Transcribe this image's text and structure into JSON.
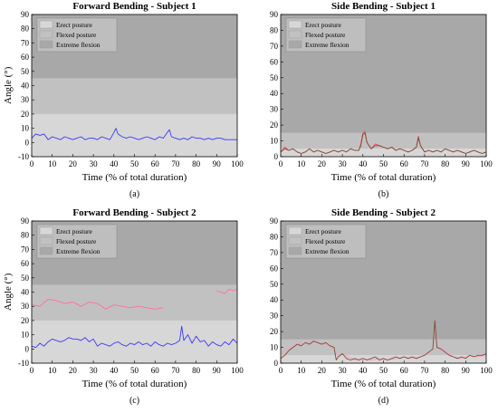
{
  "figure": {
    "captions": [
      "(a)",
      "(b)",
      "(c)",
      "(d)"
    ],
    "zone_colors": {
      "erect": "#d7d7d7",
      "flexed": "#c1c1c1",
      "extreme": "#a8a8a8"
    },
    "series_colors": {
      "blue": "#3a3aff",
      "brown": "#7a5030",
      "red": "#ff3c5a",
      "pink": "#ff9bc8"
    }
  },
  "chart_data": [
    {
      "type": "line",
      "title": "Forward Bending - Subject 1",
      "xlabel": "Time (% of total duration)",
      "ylabel": "Angle (°)",
      "xlim": [
        0,
        100
      ],
      "ylim": [
        -10,
        90
      ],
      "xticks": [
        "0",
        "10",
        "20",
        "30",
        "40",
        "50",
        "60",
        "70",
        "80",
        "90",
        "100"
      ],
      "yticks": [
        "-10",
        "0",
        "10",
        "20",
        "30",
        "40",
        "50",
        "60",
        "70",
        "80",
        "90"
      ],
      "legend": {
        "placement": "top-left",
        "entries": [
          "Erect posture",
          "Flexed posture",
          "Extreme flexion"
        ]
      },
      "zones": [
        {
          "name": "Erect posture",
          "from": -10,
          "to": 20
        },
        {
          "name": "Flexed posture",
          "from": 20,
          "to": 45
        },
        {
          "name": "Extreme flexion",
          "from": 45,
          "to": 90
        }
      ],
      "series": [
        {
          "color": "#3a3aff",
          "x": [
            0,
            2,
            4,
            6,
            8,
            10,
            12,
            14,
            16,
            18,
            20,
            22,
            24,
            26,
            28,
            30,
            32,
            34,
            36,
            38,
            40,
            41,
            42,
            44,
            46,
            48,
            50,
            52,
            54,
            56,
            58,
            60,
            62,
            64,
            66,
            67,
            68,
            70,
            72,
            74,
            76,
            78,
            80,
            82,
            84,
            86,
            88,
            90,
            92,
            94,
            96,
            98,
            100
          ],
          "y": [
            3,
            6,
            5,
            6,
            2,
            4,
            3,
            2,
            4,
            3,
            2,
            3,
            4,
            2,
            3,
            3,
            2,
            4,
            3,
            2,
            7,
            10,
            6,
            4,
            3,
            4,
            3,
            2,
            3,
            4,
            3,
            2,
            4,
            3,
            7,
            9,
            4,
            3,
            2,
            3,
            2,
            4,
            3,
            3,
            2,
            3,
            2,
            3,
            3,
            2,
            2,
            2,
            2
          ]
        }
      ]
    },
    {
      "type": "line",
      "title": "Side Bending - Subject 1",
      "xlabel": "Time (% of total duration)",
      "ylabel": "",
      "xlim": [
        0,
        100
      ],
      "ylim": [
        0,
        90
      ],
      "xticks": [
        "0",
        "10",
        "20",
        "30",
        "40",
        "50",
        "60",
        "70",
        "80",
        "90",
        "100"
      ],
      "yticks": [
        "0",
        "10",
        "20",
        "30",
        "40",
        "50",
        "60",
        "70",
        "80",
        "90"
      ],
      "legend": {
        "placement": "top-left",
        "entries": [
          "Erect posture",
          "Flexed posture",
          "Extreme flexion"
        ]
      },
      "zones": [
        {
          "name": "Erect posture",
          "from": 0,
          "to": 5
        },
        {
          "name": "Flexed posture",
          "from": 5,
          "to": 15
        },
        {
          "name": "Extreme flexion",
          "from": 15,
          "to": 90
        }
      ],
      "series": [
        {
          "color": "#ff3c5a",
          "x": [
            0,
            2,
            4,
            6,
            8,
            10,
            12,
            14,
            16,
            18,
            20,
            22,
            24,
            26,
            28,
            30,
            32,
            34,
            36,
            38,
            39,
            40,
            41,
            42,
            44,
            46,
            48,
            50,
            52,
            54,
            56,
            58,
            60,
            62,
            64,
            66,
            67,
            68,
            70,
            72,
            74,
            76,
            78,
            80,
            82,
            84,
            86,
            88,
            90,
            92,
            94,
            96,
            98,
            100
          ],
          "y": [
            3,
            6,
            4,
            5,
            3,
            2,
            3,
            5,
            3,
            4,
            3,
            2,
            3,
            4,
            3,
            4,
            3,
            5,
            4,
            4,
            8,
            15,
            16,
            9,
            5,
            8,
            7,
            6,
            5,
            6,
            4,
            5,
            4,
            3,
            4,
            6,
            13,
            7,
            3,
            4,
            3,
            4,
            3,
            5,
            4,
            3,
            4,
            3,
            2,
            3,
            4,
            3,
            2,
            3
          ]
        },
        {
          "color": "#7a5030",
          "x": [
            0,
            2,
            4,
            6,
            8,
            10,
            12,
            14,
            16,
            18,
            20,
            22,
            24,
            26,
            28,
            30,
            32,
            34,
            36,
            38,
            39,
            40,
            41,
            42,
            44,
            46,
            48,
            50,
            52,
            54,
            56,
            58,
            60,
            62,
            64,
            66,
            67,
            68,
            70,
            72,
            74,
            76,
            78,
            80,
            82,
            84,
            86,
            88,
            90,
            92,
            94,
            96,
            98,
            100
          ],
          "y": [
            3,
            5,
            4,
            5,
            3,
            2,
            3,
            5,
            3,
            4,
            3,
            2,
            3,
            4,
            3,
            4,
            3,
            5,
            4,
            4,
            7,
            14,
            15,
            9,
            5,
            7,
            7,
            6,
            5,
            6,
            4,
            5,
            4,
            3,
            4,
            6,
            12,
            7,
            3,
            4,
            3,
            4,
            3,
            5,
            4,
            3,
            4,
            3,
            2,
            3,
            4,
            3,
            2,
            3
          ]
        }
      ]
    },
    {
      "type": "line",
      "title": "Forward Bending - Subject 2",
      "xlabel": "Time (% of total duration)",
      "ylabel": "Angle (°)",
      "xlim": [
        0,
        100
      ],
      "ylim": [
        -10,
        90
      ],
      "xticks": [
        "0",
        "10",
        "20",
        "30",
        "40",
        "50",
        "60",
        "70",
        "80",
        "90",
        "100"
      ],
      "yticks": [
        "-10",
        "0",
        "10",
        "20",
        "30",
        "40",
        "50",
        "60",
        "70",
        "80",
        "90"
      ],
      "legend": {
        "placement": "top-left",
        "entries": [
          "Erect posture",
          "Flexed posture",
          "Extreme flexion"
        ]
      },
      "zones": [
        {
          "name": "Erect posture",
          "from": -10,
          "to": 20
        },
        {
          "name": "Flexed posture",
          "from": 20,
          "to": 45
        },
        {
          "name": "Extreme flexion",
          "from": 45,
          "to": 90
        }
      ],
      "series": [
        {
          "color": "#ff6fa0",
          "x": [
            0,
            4,
            8,
            12,
            16,
            20,
            24,
            28,
            32,
            36,
            40,
            44,
            48,
            52,
            56,
            60,
            64
          ],
          "y": [
            31,
            30,
            35,
            34,
            32,
            33,
            30,
            33,
            32,
            28,
            31,
            30,
            29,
            30,
            29,
            28,
            29
          ]
        },
        {
          "color": "#ff6fa0",
          "x": [
            90,
            92,
            94,
            96,
            98,
            100
          ],
          "y": [
            41,
            40,
            39,
            42,
            41,
            42
          ]
        },
        {
          "color": "#3a3aff",
          "x": [
            0,
            2,
            4,
            6,
            8,
            10,
            12,
            14,
            16,
            18,
            20,
            22,
            24,
            26,
            28,
            30,
            32,
            34,
            36,
            38,
            40,
            42,
            44,
            46,
            48,
            50,
            52,
            54,
            56,
            58,
            60,
            62,
            64,
            66,
            68,
            70,
            72,
            73,
            74,
            76,
            78,
            80,
            82,
            84,
            86,
            88,
            90,
            92,
            94,
            96,
            98,
            100
          ],
          "y": [
            2,
            1,
            4,
            2,
            5,
            7,
            6,
            5,
            6,
            8,
            7,
            7,
            6,
            8,
            5,
            7,
            2,
            4,
            3,
            2,
            4,
            5,
            3,
            2,
            4,
            3,
            5,
            3,
            4,
            2,
            5,
            3,
            2,
            4,
            3,
            4,
            6,
            16,
            6,
            10,
            4,
            9,
            5,
            6,
            2,
            5,
            3,
            2,
            5,
            3,
            7,
            4
          ]
        }
      ]
    },
    {
      "type": "line",
      "title": "Side Bending - Subject 2",
      "xlabel": "Time (% of total duration)",
      "ylabel": "",
      "xlim": [
        0,
        100
      ],
      "ylim": [
        0,
        90
      ],
      "xticks": [
        "0",
        "10",
        "20",
        "30",
        "40",
        "50",
        "60",
        "70",
        "80",
        "90",
        "100"
      ],
      "yticks": [
        "0",
        "10",
        "20",
        "30",
        "40",
        "50",
        "60",
        "70",
        "80",
        "90"
      ],
      "legend": {
        "placement": "top-left",
        "entries": [
          "Erect posture",
          "Flexed posture",
          "Extreme flexion"
        ]
      },
      "zones": [
        {
          "name": "Erect posture",
          "from": 0,
          "to": 5
        },
        {
          "name": "Flexed posture",
          "from": 5,
          "to": 15
        },
        {
          "name": "Extreme flexion",
          "from": 15,
          "to": 90
        }
      ],
      "series": [
        {
          "color": "#ff9bc8",
          "x": [
            0,
            3,
            6,
            9,
            12,
            15,
            18,
            21,
            24,
            26,
            28,
            30,
            33,
            36,
            40,
            44,
            48,
            52,
            56,
            60,
            64,
            68,
            72,
            74,
            75,
            76,
            78,
            80,
            84,
            88,
            92,
            96,
            100
          ],
          "y": [
            3,
            8,
            11,
            13,
            12,
            14,
            13,
            12,
            11,
            9,
            4,
            6,
            4,
            2,
            3,
            2,
            3,
            2,
            3,
            4,
            3,
            4,
            6,
            9,
            26,
            12,
            10,
            8,
            4,
            3,
            5,
            4,
            5
          ]
        },
        {
          "color": "#7a5030",
          "x": [
            0,
            2,
            4,
            6,
            8,
            10,
            12,
            14,
            16,
            18,
            20,
            22,
            24,
            26,
            27,
            28,
            30,
            32,
            34,
            36,
            38,
            40,
            42,
            44,
            46,
            48,
            50,
            52,
            54,
            56,
            58,
            60,
            62,
            64,
            66,
            68,
            70,
            72,
            74,
            75,
            76,
            78,
            80,
            82,
            84,
            86,
            88,
            90,
            92,
            94,
            96,
            98,
            100
          ],
          "y": [
            3,
            5,
            8,
            10,
            12,
            11,
            13,
            12,
            14,
            13,
            12,
            13,
            11,
            10,
            2,
            4,
            6,
            3,
            2,
            3,
            2,
            3,
            2,
            3,
            4,
            2,
            3,
            2,
            3,
            4,
            3,
            4,
            3,
            4,
            3,
            4,
            5,
            7,
            9,
            27,
            10,
            9,
            7,
            5,
            4,
            3,
            4,
            3,
            5,
            4,
            5,
            5,
            6
          ]
        }
      ]
    }
  ]
}
